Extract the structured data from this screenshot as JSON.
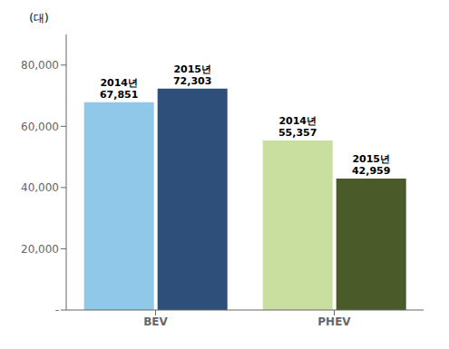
{
  "chart_data": {
    "type": "bar",
    "categories": [
      "BEV",
      "PHEV"
    ],
    "ylabel": "(대)",
    "series": [
      {
        "name": "2014년",
        "colors": [
          "#8FC8E8",
          "#C8DFA0"
        ],
        "values": [
          67851,
          55357
        ],
        "value_labels": [
          "67,851",
          "55,357"
        ]
      },
      {
        "name": "2015년",
        "colors": [
          "#2D4F7A",
          "#4A5A28"
        ],
        "values": [
          72303,
          42959
        ],
        "value_labels": [
          "72,303",
          "42,959"
        ]
      }
    ],
    "ylim": [
      0,
      90000
    ],
    "yticks": [
      {
        "value": 0,
        "label": "-"
      },
      {
        "value": 20000,
        "label": "20,000"
      },
      {
        "value": 40000,
        "label": "40,000"
      },
      {
        "value": 60000,
        "label": "60,000"
      },
      {
        "value": 80000,
        "label": "80,000"
      }
    ],
    "data_labels": true,
    "grid": false
  }
}
